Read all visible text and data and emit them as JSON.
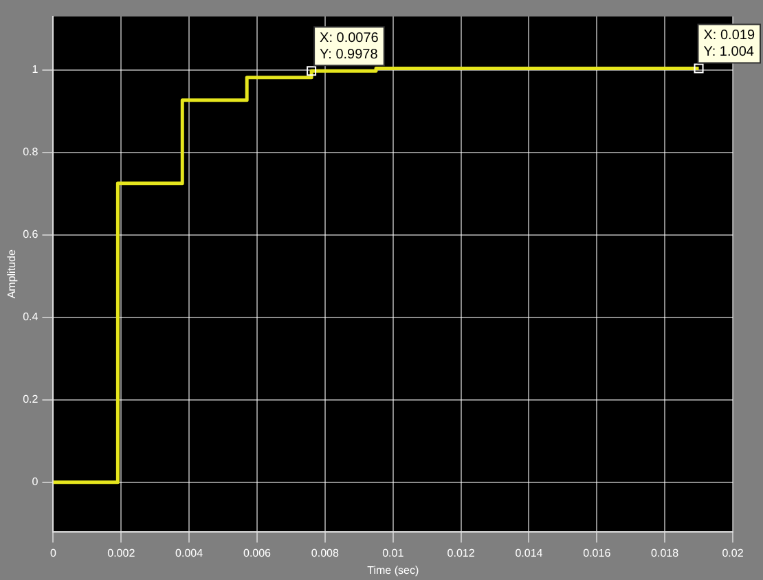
{
  "chart_data": {
    "type": "step",
    "xlabel": "Time (sec)",
    "ylabel": "Amplitude",
    "series": [
      {
        "color": "#e6e61e",
        "x": [
          0,
          0.0019,
          0.0038,
          0.0057,
          0.0076,
          0.0095,
          0.019
        ],
        "values": [
          0,
          0.725,
          0.927,
          0.982,
          0.9978,
          1.004,
          1.004
        ]
      }
    ],
    "xlim": [
      0,
      0.02
    ],
    "xticks": [
      0,
      0.002,
      0.004,
      0.006,
      0.008,
      0.01,
      0.012,
      0.014,
      0.016,
      0.018,
      0.02
    ],
    "ylim": [
      -0.12,
      1.13
    ],
    "yticks": [
      0,
      0.2,
      0.4,
      0.6,
      0.8,
      1
    ],
    "grid": true,
    "legend": false,
    "marker": "none",
    "line_style": "solid",
    "annotations": [
      {
        "text": "X: 0.0076\nY: 0.9978",
        "x": 0.0076,
        "y": 0.9978
      },
      {
        "text": "X: 0.019\nY: 1.004",
        "x": 0.019,
        "y": 1.004
      }
    ]
  }
}
